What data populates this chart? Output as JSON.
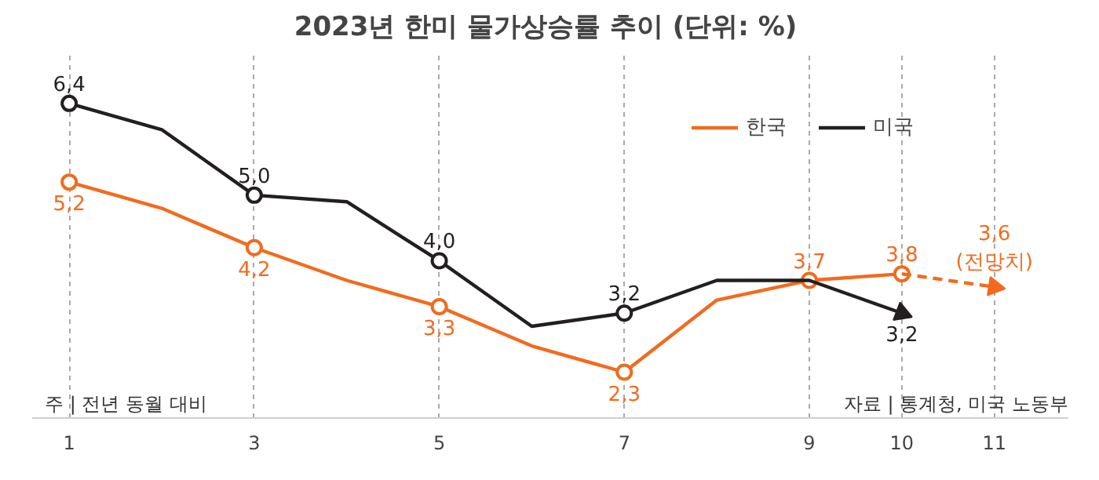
{
  "chart_data": {
    "type": "line",
    "title": "2023년 한미 물가상승률 추이",
    "subtitle": "(단위: %)",
    "x": [
      1,
      2,
      3,
      4,
      5,
      6,
      7,
      8,
      9,
      10
    ],
    "xticks": [
      1,
      3,
      5,
      7,
      9,
      10,
      11
    ],
    "xlim": [
      0.6,
      11.8
    ],
    "ylim": [
      1.6,
      7.2
    ],
    "series": [
      {
        "name": "한국",
        "color": "#f26b1d",
        "values": [
          5.2,
          4.8,
          4.2,
          3.7,
          3.3,
          2.7,
          2.3,
          3.4,
          3.7,
          3.8
        ],
        "value_labels": [
          "5,2",
          null,
          "4,2",
          null,
          "3,3",
          null,
          "2,3",
          null,
          "3,7",
          "3,8"
        ]
      },
      {
        "name": "미국",
        "color": "#231f20",
        "values": [
          6.4,
          6.0,
          5.0,
          4.9,
          4.0,
          3.0,
          3.2,
          3.7,
          3.7,
          3.2
        ],
        "value_labels": [
          "6,4",
          null,
          "5,0",
          null,
          "4,0",
          null,
          "3,2",
          null,
          null,
          "3,2"
        ]
      },
      {
        "color": "#f26b1d",
        "x": [
          10,
          11
        ],
        "values": [
          3.8,
          3.6
        ],
        "line_style": "dashed",
        "marker": "triangle",
        "value_labels": [
          null,
          "3,6\n(전망치)"
        ]
      }
    ],
    "marker": "circle",
    "line_style": "solid",
    "grid": "x",
    "legend": "top right",
    "annotations": [
      "주 | 전년 동월 대비",
      "자료 | 통계청, 미국 노동부"
    ]
  }
}
